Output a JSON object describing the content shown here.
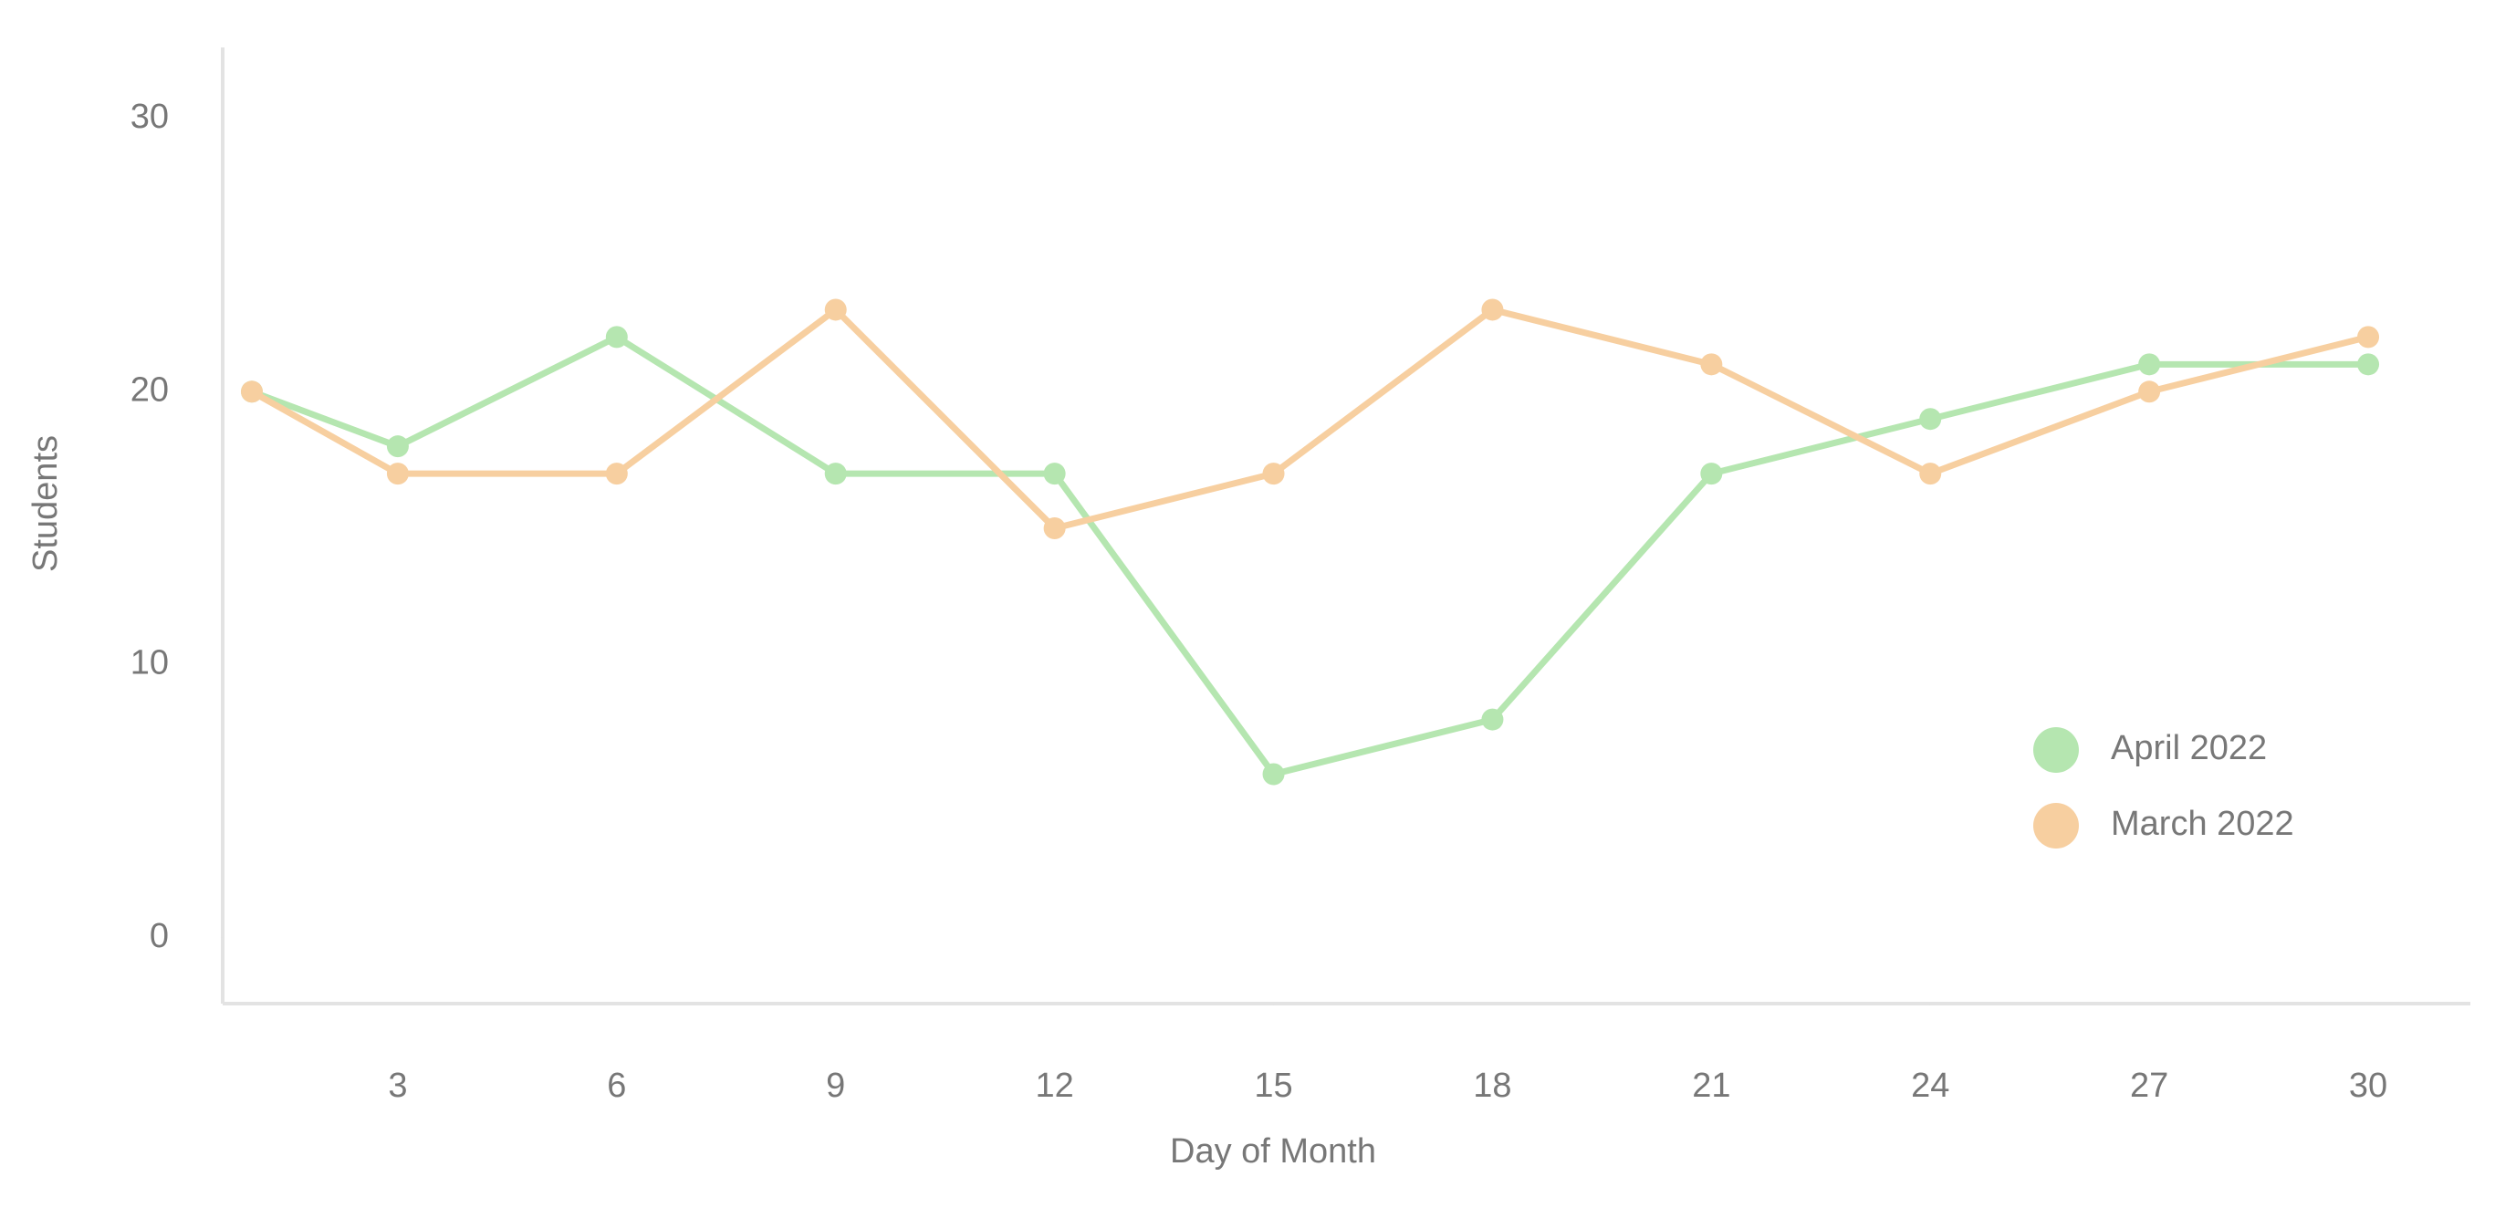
{
  "chart_data": {
    "type": "line",
    "x_label": "Day of Month",
    "y_label": "Students",
    "x": [
      1,
      3,
      6,
      9,
      12,
      15,
      18,
      21,
      24,
      27,
      30
    ],
    "series": [
      {
        "name": "April 2022",
        "color": "#b5e6b0",
        "values": [
          20,
          18,
          22,
          17,
          17,
          6,
          8,
          17,
          19,
          21,
          21
        ]
      },
      {
        "name": "March 2022",
        "color": "#f7cfa0",
        "values": [
          20,
          17,
          17,
          23,
          15,
          17,
          23,
          21,
          17,
          20,
          22
        ]
      }
    ],
    "xlim": [
      0.6,
      31.4
    ],
    "xticks": [
      3,
      6,
      9,
      12,
      15,
      18,
      21,
      24,
      27,
      30
    ],
    "ylim": [
      -2.4,
      32.6
    ],
    "yticks": [
      0,
      10,
      20,
      30
    ],
    "legend": "right"
  }
}
